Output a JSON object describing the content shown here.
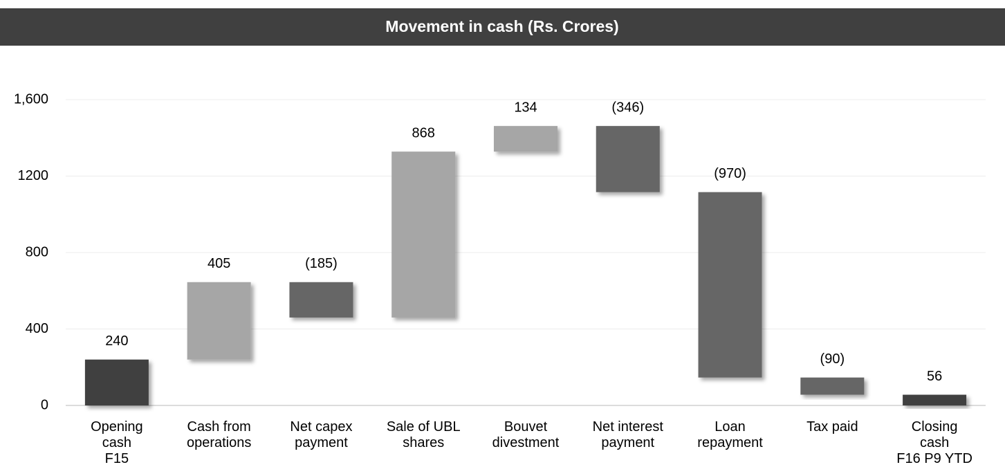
{
  "chart_data": {
    "type": "waterfall",
    "title": "Movement in cash (Rs. Crores)",
    "categories": [
      "Opening\ncash\nF15",
      "Cash from\noperations",
      "Net capex\npayment",
      "Sale of UBL\nshares",
      "Bouvet\ndivestment",
      "Net interest\npayment",
      "Loan\nrepayment",
      "Tax paid",
      "Closing\ncash\nF16 P9 YTD"
    ],
    "values": [
      240,
      405,
      -185,
      868,
      134,
      -346,
      -970,
      -90,
      56
    ],
    "value_labels": [
      "240",
      "405",
      "(185)",
      "868",
      "134",
      "(346)",
      "(970)",
      "(90)",
      "56"
    ],
    "kinds": [
      "total",
      "delta",
      "delta",
      "delta",
      "delta",
      "delta",
      "delta",
      "delta",
      "total"
    ],
    "colors": {
      "total": "#404040",
      "increase": "#a6a6a6",
      "decrease": "#666666"
    },
    "ylim": [
      0,
      1600
    ],
    "yticks": [
      0,
      400,
      800,
      1200,
      {
        "value": 1600,
        "label": "1,600"
      }
    ],
    "grid": true
  }
}
